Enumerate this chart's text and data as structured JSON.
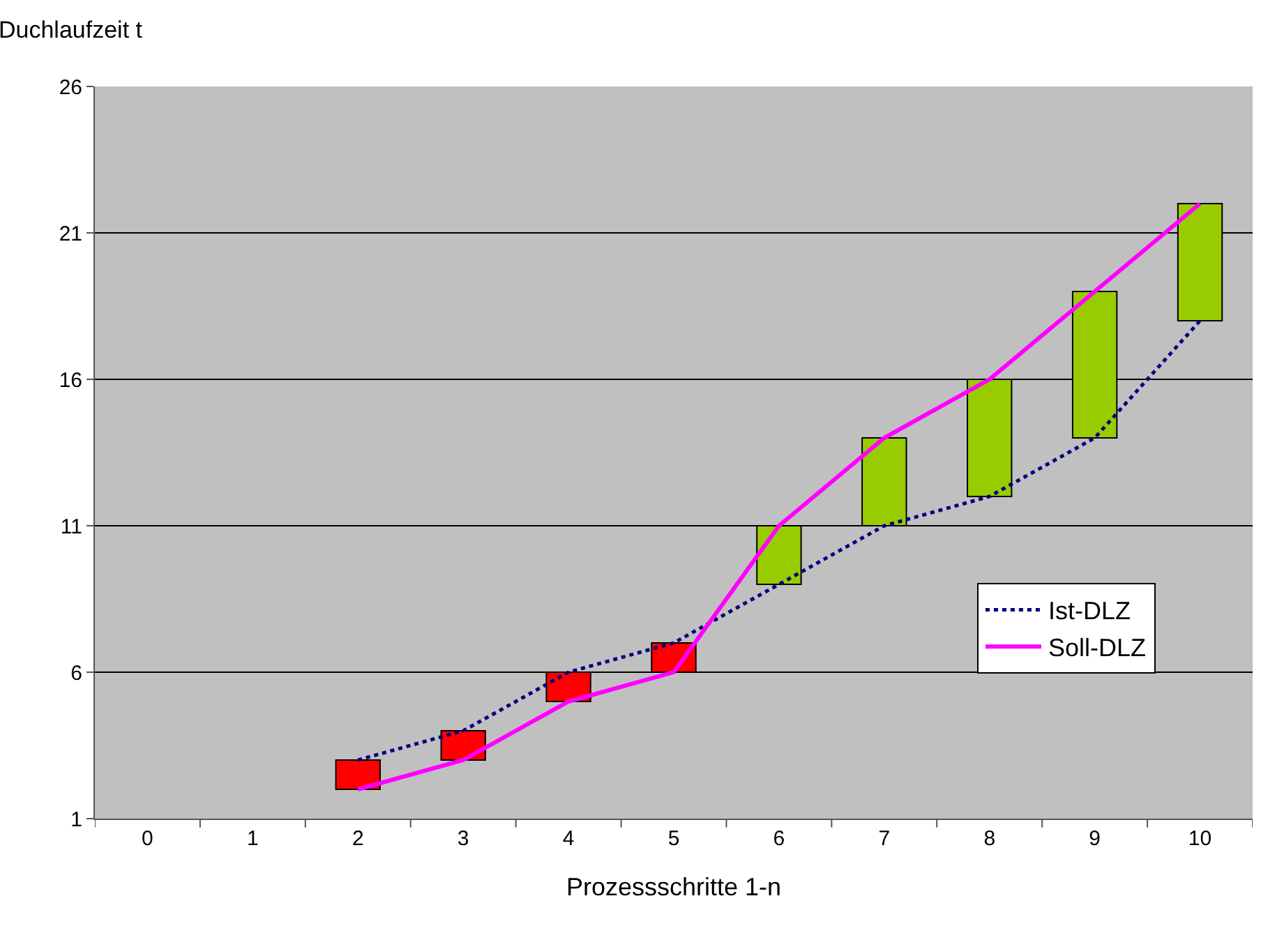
{
  "chart_data": {
    "type": "bar",
    "xlabel": "Prozessschritte 1-n",
    "ylabel": "Duchlaufzeit t",
    "categories": [
      "0",
      "1",
      "2",
      "3",
      "4",
      "5",
      "6",
      "7",
      "8",
      "9",
      "10"
    ],
    "series": [
      {
        "base": [
          null,
          null,
          2,
          3,
          5,
          6,
          9,
          11,
          12,
          14,
          18
        ],
        "values": [
          null,
          null,
          1,
          1,
          1,
          1,
          2,
          3,
          4,
          5,
          4
        ],
        "colors": [
          "#ff0000",
          "#ff0000",
          "#ff0000",
          "#ff0000",
          "#ff0000",
          "#ff0000",
          "#99cc00",
          "#99cc00",
          "#99cc00",
          "#99cc00",
          "#99cc00"
        ]
      },
      {
        "type": "line",
        "name": "Ist-DLZ",
        "color": "#000080",
        "line_style": "dotted",
        "values": [
          null,
          null,
          3,
          4,
          6,
          7,
          9,
          11,
          12,
          14,
          18
        ]
      },
      {
        "type": "line",
        "name": "Soll-DLZ",
        "color": "#ff00ff",
        "line_style": "solid",
        "values": [
          null,
          null,
          2,
          3,
          5,
          6,
          11,
          14,
          16,
          19,
          22
        ]
      }
    ],
    "ylim": [
      1,
      26
    ],
    "yticks": [
      1,
      6,
      11,
      16,
      21,
      26
    ],
    "grid": "y",
    "legend": "right",
    "marker": "none"
  }
}
